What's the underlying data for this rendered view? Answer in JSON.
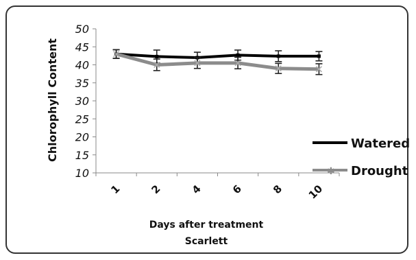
{
  "chart_data": {
    "type": "line",
    "categories": [
      "1",
      "2",
      "4",
      "6",
      "8",
      "10"
    ],
    "series": [
      {
        "name": "Watered",
        "color": "#000000",
        "values": [
          43,
          42.3,
          42,
          42.7,
          42.4,
          42.4
        ],
        "errors": [
          1.2,
          1.8,
          1.5,
          1.4,
          1.5,
          1.3
        ]
      },
      {
        "name": "Drought",
        "color": "#8c8c8c",
        "values": [
          43,
          40,
          40.5,
          40.5,
          39,
          38.8
        ],
        "errors": [
          1.2,
          1.6,
          1.5,
          1.6,
          1.4,
          1.5
        ]
      }
    ],
    "ylabel": "Chlorophyll Content",
    "xlabel": "Days after treatment",
    "subtitle": "Scarlett",
    "ylim": [
      10,
      50
    ],
    "yticks": [
      10,
      15,
      20,
      25,
      30,
      35,
      40,
      45,
      50
    ],
    "legend_position": "right"
  }
}
